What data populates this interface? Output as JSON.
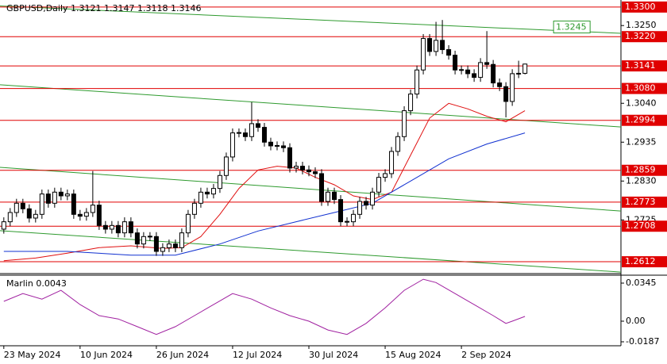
{
  "chart_data": {
    "type": "candlestick",
    "symbol": "GBPUSD,Daily",
    "xlim": [
      -0.6,
      97.1
    ],
    "ylim": [
      1.258,
      1.3319
    ],
    "yticks": [
      {
        "value": 1.325,
        "label": "1.3250"
      },
      {
        "value": 1.304,
        "label": "1.3040"
      },
      1.2935,
      {
        "value": 1.283,
        "label": "1.2830"
      },
      1.2725
    ],
    "xticks": [
      {
        "value": 0,
        "label": "23 May 2024"
      },
      {
        "value": 12,
        "label": "10 Jun 2024"
      },
      {
        "value": 24,
        "label": "26 Jun 2024"
      },
      {
        "value": 36,
        "label": "12 Jul 2024"
      },
      {
        "value": 48,
        "label": "30 Jul 2024"
      },
      {
        "value": 60,
        "label": "15 Aug 2024"
      },
      {
        "value": 72,
        "label": "2 Sep 2024"
      }
    ],
    "ohlc": [
      [
        1.27,
        1.2732,
        1.2688,
        1.272
      ],
      [
        1.272,
        1.2757,
        1.2708,
        1.2745
      ],
      [
        1.2745,
        1.2782,
        1.2733,
        1.277
      ],
      [
        1.277,
        1.2782,
        1.2743,
        1.2755
      ],
      [
        1.2755,
        1.2767,
        1.2718,
        1.273
      ],
      [
        1.273,
        1.2752,
        1.2718,
        1.274
      ],
      [
        1.274,
        1.2807,
        1.2728,
        1.2795
      ],
      [
        1.2795,
        1.2807,
        1.2758,
        1.277
      ],
      [
        1.277,
        1.2812,
        1.2758,
        1.28
      ],
      [
        1.28,
        1.2812,
        1.2778,
        1.279
      ],
      [
        1.279,
        1.2807,
        1.2778,
        1.2795
      ],
      [
        1.2795,
        1.2807,
        1.2728,
        1.274
      ],
      [
        1.274,
        1.2752,
        1.2723,
        1.2735
      ],
      [
        1.2735,
        1.2757,
        1.2723,
        1.2745
      ],
      [
        1.2745,
        1.2857,
        1.2733,
        1.2765
      ],
      [
        1.2765,
        1.2777,
        1.2698,
        1.271
      ],
      [
        1.271,
        1.2722,
        1.2688,
        1.27
      ],
      [
        1.27,
        1.2722,
        1.2688,
        1.271
      ],
      [
        1.271,
        1.2722,
        1.2678,
        1.269
      ],
      [
        1.269,
        1.2732,
        1.2678,
        1.272
      ],
      [
        1.272,
        1.2732,
        1.2678,
        1.269
      ],
      [
        1.269,
        1.2702,
        1.2648,
        1.266
      ],
      [
        1.266,
        1.2692,
        1.2648,
        1.268
      ],
      [
        1.268,
        1.2692,
        1.2668,
        1.2681
      ],
      [
        1.268,
        1.2692,
        1.2628,
        1.264
      ],
      [
        1.264,
        1.2662,
        1.2628,
        1.265
      ],
      [
        1.265,
        1.2672,
        1.2638,
        1.266
      ],
      [
        1.266,
        1.2672,
        1.2638,
        1.265
      ],
      [
        1.265,
        1.2702,
        1.2638,
        1.269
      ],
      [
        1.269,
        1.2752,
        1.2678,
        1.274
      ],
      [
        1.274,
        1.2782,
        1.2728,
        1.277
      ],
      [
        1.277,
        1.2812,
        1.2758,
        1.28
      ],
      [
        1.28,
        1.2812,
        1.2783,
        1.2795
      ],
      [
        1.2795,
        1.2822,
        1.2783,
        1.281
      ],
      [
        1.281,
        1.2857,
        1.2798,
        1.2845
      ],
      [
        1.2845,
        1.2907,
        1.2833,
        1.2895
      ],
      [
        1.2895,
        1.2972,
        1.2883,
        1.296
      ],
      [
        1.296,
        1.2972,
        1.2948,
        1.2961
      ],
      [
        1.296,
        1.2972,
        1.2938,
        1.295
      ],
      [
        1.295,
        1.3043,
        1.2938,
        1.2985
      ],
      [
        1.2985,
        1.2997,
        1.2963,
        1.2975
      ],
      [
        1.2975,
        1.2987,
        1.2923,
        1.2935
      ],
      [
        1.2935,
        1.2947,
        1.2913,
        1.2925
      ],
      [
        1.2925,
        1.2937,
        1.2913,
        1.2926
      ],
      [
        1.2925,
        1.2937,
        1.2908,
        1.292
      ],
      [
        1.292,
        1.2932,
        1.2853,
        1.2865
      ],
      [
        1.2865,
        1.2882,
        1.2853,
        1.287
      ],
      [
        1.287,
        1.2882,
        1.2848,
        1.286
      ],
      [
        1.286,
        1.2872,
        1.2843,
        1.2855
      ],
      [
        1.2855,
        1.2867,
        1.2838,
        1.285
      ],
      [
        1.285,
        1.2862,
        1.2763,
        1.2775
      ],
      [
        1.2775,
        1.2812,
        1.2763,
        1.28
      ],
      [
        1.28,
        1.2812,
        1.2768,
        1.278
      ],
      [
        1.278,
        1.2792,
        1.2708,
        1.272
      ],
      [
        1.272,
        1.2732,
        1.2708,
        1.2721
      ],
      [
        1.272,
        1.2752,
        1.2708,
        1.274
      ],
      [
        1.274,
        1.2787,
        1.2728,
        1.2775
      ],
      [
        1.2775,
        1.2787,
        1.2753,
        1.2765
      ],
      [
        1.2765,
        1.2812,
        1.2753,
        1.28
      ],
      [
        1.28,
        1.2852,
        1.2788,
        1.284
      ],
      [
        1.284,
        1.2862,
        1.2828,
        1.285
      ],
      [
        1.285,
        1.2922,
        1.2838,
        1.291
      ],
      [
        1.291,
        1.2962,
        1.2898,
        1.295
      ],
      [
        1.295,
        1.3032,
        1.2938,
        1.302
      ],
      [
        1.302,
        1.3077,
        1.3008,
        1.3065
      ],
      [
        1.3065,
        1.3142,
        1.3053,
        1.313
      ],
      [
        1.313,
        1.3227,
        1.3118,
        1.3215
      ],
      [
        1.3215,
        1.3227,
        1.3168,
        1.318
      ],
      [
        1.318,
        1.326,
        1.3168,
        1.321
      ],
      [
        1.321,
        1.3265,
        1.3173,
        1.3185
      ],
      [
        1.3185,
        1.3197,
        1.3158,
        1.317
      ],
      [
        1.317,
        1.3182,
        1.3118,
        1.313
      ],
      [
        1.313,
        1.3142,
        1.3118,
        1.3131
      ],
      [
        1.313,
        1.3142,
        1.3108,
        1.312
      ],
      [
        1.312,
        1.3132,
        1.3098,
        1.311
      ],
      [
        1.311,
        1.3162,
        1.3098,
        1.315
      ],
      [
        1.315,
        1.3235,
        1.3133,
        1.3145
      ],
      [
        1.3145,
        1.3157,
        1.3083,
        1.3095
      ],
      [
        1.3095,
        1.3107,
        1.3073,
        1.3085
      ],
      [
        1.3085,
        1.3097,
        1.3002,
        1.3045
      ],
      [
        1.3045,
        1.3132,
        1.3033,
        1.312
      ],
      [
        1.312,
        1.3155,
        1.3108,
        1.3121
      ],
      [
        1.3121,
        1.3147,
        1.3118,
        1.3146
      ]
    ],
    "bull_color": "#ffffff",
    "bear_color": "#000000",
    "moving_averages": [
      {
        "color": "#e01010",
        "x": [
          0,
          5,
          10,
          15,
          20,
          25,
          28,
          31,
          34,
          37,
          40,
          43,
          46,
          49,
          52,
          55,
          58,
          61,
          64,
          67,
          70,
          73,
          76,
          79,
          82
        ],
        "values": [
          1.2615,
          1.2622,
          1.2635,
          1.265,
          1.2655,
          1.2648,
          1.265,
          1.268,
          1.274,
          1.281,
          1.286,
          1.287,
          1.2865,
          1.284,
          1.282,
          1.279,
          1.278,
          1.28,
          1.29,
          1.3,
          1.304,
          1.3025,
          1.3005,
          1.299,
          1.302
        ]
      },
      {
        "color": "#1030d0",
        "x": [
          0,
          10,
          20,
          27,
          34,
          40,
          46,
          52,
          58,
          64,
          70,
          76,
          82
        ],
        "values": [
          1.264,
          1.264,
          1.263,
          1.263,
          1.266,
          1.2695,
          1.272,
          1.2745,
          1.277,
          1.283,
          1.289,
          1.293,
          1.296
        ]
      }
    ],
    "trendlines": [
      {
        "color": "#2e9a2e",
        "x": [
          -0.6,
          97.1
        ],
        "values": [
          1.3303,
          1.3229
        ]
      },
      {
        "color": "#2e9a2e",
        "x": [
          -0.6,
          97.1
        ],
        "values": [
          1.309,
          1.2976
        ]
      },
      {
        "color": "#2e9a2e",
        "x": [
          -0.6,
          97.1
        ],
        "values": [
          1.2867,
          1.2749
        ]
      },
      {
        "color": "#2e9a2e",
        "x": [
          -0.6,
          97.1
        ],
        "values": [
          1.2696,
          1.2584
        ]
      }
    ],
    "trendline_label": {
      "value": 1.3245,
      "x": 86.5
    },
    "levels": [
      {
        "value": 1.33,
        "label": "1.3300"
      },
      {
        "value": 1.322,
        "label": "1.3220"
      },
      1.3141,
      {
        "value": 1.308,
        "label": "1.3080"
      },
      1.2994,
      1.2859,
      1.2773,
      1.2708,
      1.2612
    ],
    "level_color": "#e00000",
    "indicator": {
      "name": "Marlin",
      "color": "#a020a0",
      "ylim": [
        -0.0223,
        0.0417
      ],
      "yticks": [
        0.0345,
        {
          "value": 0,
          "label": "0.00"
        },
        -0.0187
      ],
      "x": [
        0,
        3,
        6,
        9,
        12,
        15,
        18,
        21,
        24,
        27,
        30,
        33,
        36,
        39,
        42,
        45,
        48,
        51,
        54,
        57,
        60,
        63,
        66,
        68,
        71,
        74,
        77,
        79,
        80,
        82
      ],
      "values": [
        0.018,
        0.025,
        0.02,
        0.028,
        0.015,
        0.005,
        0.002,
        -0.005,
        -0.012,
        -0.005,
        0.005,
        0.015,
        0.025,
        0.02,
        0.012,
        0.005,
        0.0,
        -0.008,
        -0.012,
        -0.002,
        0.012,
        0.028,
        0.038,
        0.035,
        0.025,
        0.015,
        0.005,
        -0.002,
        0.0,
        0.0043
      ]
    }
  }
}
